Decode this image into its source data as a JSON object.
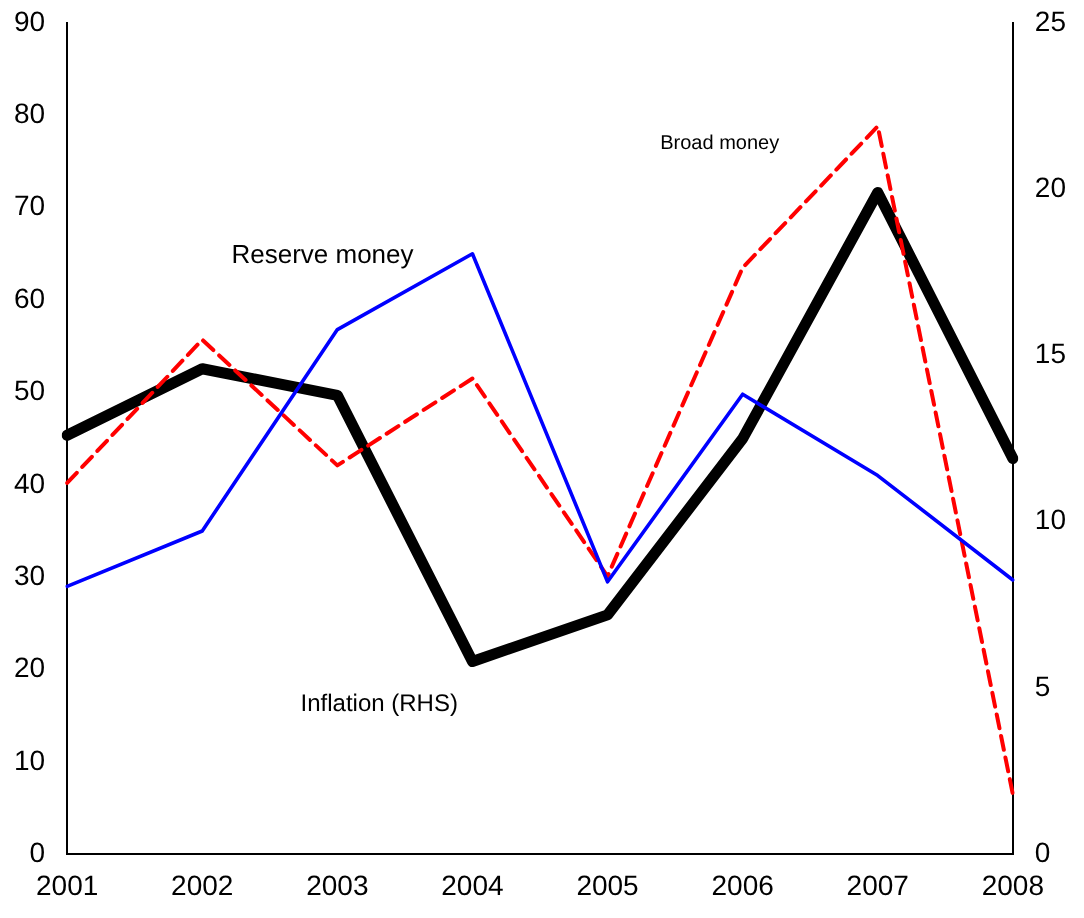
{
  "chart_data": {
    "type": "line",
    "categories": [
      "2001",
      "2002",
      "2003",
      "2004",
      "2005",
      "2006",
      "2007",
      "2008"
    ],
    "series": [
      {
        "name": "Reserve money",
        "color": "#0000ff",
        "values": [
          29,
          35,
          56.8,
          65,
          29.5,
          49.8,
          41,
          29.7
        ],
        "line_style": "solid"
      },
      {
        "name": "Broad money",
        "color": "#ff0000",
        "values": [
          40.2,
          55.7,
          42.1,
          51.5,
          30.1,
          63.5,
          78.8,
          6.5
        ],
        "line_style": "dashed"
      },
      {
        "name": "Inflation (RHS)",
        "color": "#000000",
        "values": [
          12.6,
          14.6,
          13.8,
          5.8,
          7.2,
          12.5,
          19.9,
          11.9
        ],
        "axis": "y2",
        "line_style": "solid"
      }
    ],
    "ylim": [
      0,
      90
    ],
    "yticks": [
      0,
      10,
      20,
      30,
      40,
      50,
      60,
      70,
      80,
      90
    ],
    "y2lim": [
      0,
      25
    ],
    "y2ticks": [
      0,
      5,
      10,
      15,
      20,
      25
    ],
    "grid": false,
    "legend": false,
    "marker": "none"
  }
}
